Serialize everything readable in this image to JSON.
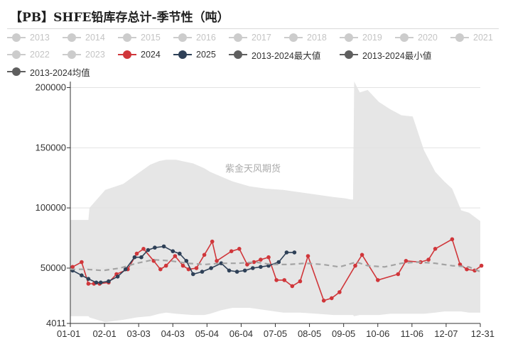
{
  "title": "【PB】SHFE铅库存总计-季节性（吨）",
  "watermark": "紫金天风期货",
  "legend": [
    {
      "label": "2013",
      "color": "#cccccc",
      "faded": true
    },
    {
      "label": "2014",
      "color": "#cccccc",
      "faded": true
    },
    {
      "label": "2015",
      "color": "#cccccc",
      "faded": true
    },
    {
      "label": "2016",
      "color": "#cccccc",
      "faded": true
    },
    {
      "label": "2017",
      "color": "#cccccc",
      "faded": true
    },
    {
      "label": "2018",
      "color": "#cccccc",
      "faded": true
    },
    {
      "label": "2019",
      "color": "#cccccc",
      "faded": true
    },
    {
      "label": "2020",
      "color": "#cccccc",
      "faded": true
    },
    {
      "label": "2021",
      "color": "#cccccc",
      "faded": true
    },
    {
      "label": "2022",
      "color": "#cccccc",
      "faded": true
    },
    {
      "label": "2023",
      "color": "#cccccc",
      "faded": true
    },
    {
      "label": "2024",
      "color": "#d0363a",
      "faded": false
    },
    {
      "label": "2025",
      "color": "#2e4057",
      "faded": false
    },
    {
      "label": "2013-2024最大値",
      "color": "#5f5f5f",
      "faded": false
    },
    {
      "label": "2013-2024最小値",
      "color": "#5f5f5f",
      "faded": false
    },
    {
      "label": "2013-2024均值",
      "color": "#5f5f5f",
      "faded": false
    }
  ],
  "chart_data": {
    "type": "line",
    "title": "【PB】SHFE铅库存总计-季节性（吨）",
    "xlabel": "",
    "ylabel": "",
    "x_ticks": [
      "01-01",
      "02-01",
      "03-03",
      "04-03",
      "05-04",
      "06-04",
      "07-05",
      "08-05",
      "09-05",
      "10-06",
      "11-06",
      "12-07",
      "12-31"
    ],
    "y_ticks": [
      4011,
      50000,
      100000,
      150000,
      200000
    ],
    "ylim": [
      4011,
      205000
    ],
    "xlim": [
      1,
      365
    ],
    "grid": "horizontal",
    "legend_position": "top",
    "colors": {
      "y2024": "#d0363a",
      "y2025": "#2e4057",
      "band": "#e6e6e6",
      "avg": "#a3a3a3"
    },
    "band_x": [
      1,
      17,
      18,
      32,
      48,
      60,
      72,
      80,
      86,
      95,
      110,
      120,
      125,
      135,
      145,
      160,
      175,
      190,
      205,
      220,
      235,
      245,
      250,
      252,
      253,
      258,
      265,
      275,
      285,
      295,
      305,
      315,
      325,
      333,
      340,
      348,
      355,
      365
    ],
    "band_max": [
      90000,
      90000,
      100000,
      115000,
      120000,
      128000,
      136000,
      139000,
      140000,
      140000,
      137000,
      133000,
      130000,
      126000,
      122000,
      118000,
      116000,
      115000,
      113000,
      111000,
      109000,
      108000,
      107000,
      107000,
      205000,
      196000,
      198000,
      188000,
      182000,
      177000,
      176000,
      148000,
      130000,
      122000,
      116000,
      98000,
      96000,
      89000
    ],
    "band_min": [
      10000,
      10000,
      9000,
      5000,
      7000,
      9000,
      10000,
      12000,
      13000,
      12000,
      11000,
      11000,
      12000,
      15000,
      17000,
      17000,
      15000,
      13000,
      13000,
      12000,
      11000,
      11000,
      11000,
      11000,
      10000,
      11000,
      11000,
      11000,
      12000,
      12000,
      12000,
      12000,
      13000,
      14000,
      14000,
      14000,
      13000,
      13000
    ],
    "series": [
      {
        "name": "2024",
        "x": [
          3,
          11,
          17,
          22,
          27,
          35,
          42,
          52,
          60,
          66,
          75,
          81,
          86,
          94,
          101,
          106,
          113,
          120,
          127,
          131,
          144,
          151,
          158,
          164,
          170,
          177,
          184,
          191,
          198,
          205,
          212,
          226,
          233,
          240,
          254,
          260,
          274,
          292,
          299,
          312,
          319,
          325,
          340,
          347,
          353,
          360,
          366
        ],
        "y": [
          51000,
          55000,
          37000,
          37000,
          37000,
          38000,
          45000,
          49000,
          62000,
          66000,
          56000,
          49000,
          52000,
          60000,
          52000,
          49000,
          50000,
          61000,
          72000,
          56000,
          64000,
          66000,
          53000,
          55000,
          57000,
          59000,
          40000,
          40000,
          35000,
          39000,
          60000,
          23000,
          25000,
          30000,
          52000,
          61000,
          40000,
          45000,
          56000,
          55000,
          57000,
          66000,
          74000,
          53000,
          49000,
          48000,
          52000
        ]
      },
      {
        "name": "2025",
        "x": [
          3,
          11,
          17,
          24,
          28,
          35,
          43,
          50,
          58,
          64,
          70,
          76,
          84,
          92,
          98,
          104,
          110,
          118,
          126,
          135,
          142,
          149,
          156,
          163,
          170,
          177,
          186,
          193,
          200
        ],
        "y": [
          48000,
          44000,
          41000,
          38000,
          38000,
          39000,
          43000,
          49000,
          59000,
          59000,
          65000,
          67000,
          68000,
          64000,
          62000,
          56000,
          45000,
          47000,
          50000,
          54000,
          48000,
          47000,
          48000,
          50000,
          51000,
          52000,
          55000,
          63000,
          63000
        ]
      },
      {
        "name": "2013-2024均值",
        "style": "dashed",
        "x": [
          1,
          15,
          30,
          45,
          60,
          75,
          90,
          105,
          120,
          135,
          150,
          165,
          180,
          195,
          210,
          225,
          240,
          255,
          265,
          280,
          295,
          310,
          325,
          340,
          355,
          365
        ],
        "y": [
          49000,
          49000,
          48000,
          50000,
          54000,
          57000,
          56000,
          54000,
          53000,
          54000,
          54000,
          55000,
          53000,
          53000,
          54000,
          53000,
          51000,
          55000,
          52000,
          51000,
          54000,
          55000,
          54000,
          52000,
          51000,
          47000
        ]
      }
    ]
  }
}
